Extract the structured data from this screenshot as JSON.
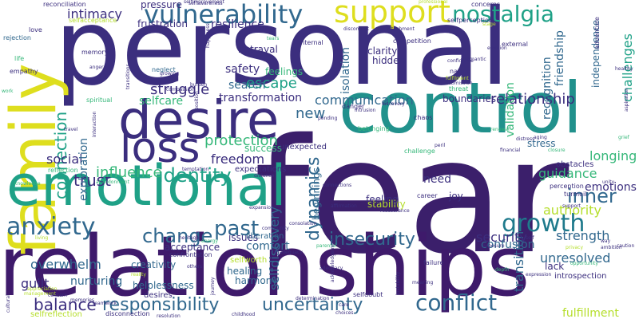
{
  "palette": {
    "dark_purple": "#440154",
    "indigo": "#3b2e7e",
    "blue": "#31688e",
    "teal": "#21918c",
    "green": "#35b779",
    "light_green": "#90d743",
    "yellow": "#fde725"
  },
  "words": [
    {
      "text": "fear",
      "color": "#3b1f6b"
    },
    {
      "text": "personal",
      "color": "#3b2e7e"
    },
    {
      "text": "relationships",
      "color": "#3e1a6b"
    },
    {
      "text": "control",
      "color": "#21918c"
    },
    {
      "text": "family",
      "color": "#dede1e"
    },
    {
      "text": "emotional",
      "color": "#1fa187"
    },
    {
      "text": "desire",
      "color": "#3b2e7e"
    },
    {
      "text": "loss",
      "color": "#3b2e7e"
    },
    {
      "text": "vulnerability",
      "color": "#31688e"
    },
    {
      "text": "support",
      "color": "#dede1e"
    },
    {
      "text": "nostalgia",
      "color": "#1fa187"
    },
    {
      "text": "anxiety",
      "color": "#31688e"
    },
    {
      "text": "responsibility",
      "color": "#31688e"
    },
    {
      "text": "uncertainty",
      "color": "#31688e"
    },
    {
      "text": "conflict",
      "color": "#31688e"
    },
    {
      "text": "connection",
      "color": "#1fa187"
    },
    {
      "text": "identity",
      "color": "#1fa187"
    },
    {
      "text": "growth",
      "color": "#1f7a8c"
    },
    {
      "text": "insecurity",
      "color": "#31688e"
    },
    {
      "text": "change",
      "color": "#31688e"
    },
    {
      "text": "past",
      "color": "#31688e"
    },
    {
      "text": "trust",
      "color": "#3b2e7e"
    },
    {
      "text": "inner",
      "color": "#31688e"
    },
    {
      "text": "balance",
      "color": "#3b2e7e"
    },
    {
      "text": "intimacy",
      "color": "#3b2e7e"
    },
    {
      "text": "struggle",
      "color": "#3b2e7e"
    },
    {
      "text": "dynamics",
      "color": "#31688e"
    },
    {
      "text": "relationship",
      "color": "#3b2e7e"
    },
    {
      "text": "communication",
      "color": "#31688e"
    },
    {
      "text": "selfdiscovery",
      "color": "#31688e"
    },
    {
      "text": "transition",
      "color": "#31688e"
    },
    {
      "text": "protection",
      "color": "#35b779"
    },
    {
      "text": "guidance",
      "color": "#35b779"
    },
    {
      "text": "longing",
      "color": "#35b779"
    },
    {
      "text": "authority",
      "color": "#b5de2b"
    },
    {
      "text": "overwhelm",
      "color": "#31688e"
    },
    {
      "text": "emotions",
      "color": "#3b2e7e"
    },
    {
      "text": "new",
      "color": "#31688e"
    },
    {
      "text": "influence",
      "color": "#35b779"
    },
    {
      "text": "escape",
      "color": "#1fa187"
    },
    {
      "text": "social",
      "color": "#3b2e7e"
    },
    {
      "text": "freedom",
      "color": "#3b2e7e"
    },
    {
      "text": "strength",
      "color": "#31688e"
    },
    {
      "text": "security",
      "color": "#3b2e7e"
    },
    {
      "text": "unresolved",
      "color": "#31688e"
    },
    {
      "text": "challenges",
      "color": "#1fa187"
    },
    {
      "text": "recognition",
      "color": "#31688e"
    },
    {
      "text": "friendship",
      "color": "#31688e"
    },
    {
      "text": "validation",
      "color": "#35b779"
    },
    {
      "text": "transformation",
      "color": "#3b2e7e"
    },
    {
      "text": "frustration",
      "color": "#3b2e7e"
    },
    {
      "text": "resilience",
      "color": "#3b2e7e"
    },
    {
      "text": "guilt",
      "color": "#3b2e7e"
    },
    {
      "text": "nurturing",
      "color": "#31688e"
    },
    {
      "text": "comfort",
      "color": "#31688e"
    },
    {
      "text": "safety",
      "color": "#3b2e7e"
    },
    {
      "text": "feelings",
      "color": "#35b779"
    },
    {
      "text": "selfcare",
      "color": "#35b779"
    },
    {
      "text": "search",
      "color": "#31688e"
    },
    {
      "text": "exploration",
      "color": "#31688e"
    },
    {
      "text": "boundaries",
      "color": "#3b2e7e"
    },
    {
      "text": "isolation",
      "color": "#31688e"
    },
    {
      "text": "betrayal",
      "color": "#3b2e7e"
    },
    {
      "text": "success",
      "color": "#35b779"
    },
    {
      "text": "stability",
      "color": "#b5de2b"
    },
    {
      "text": "need",
      "color": "#3b2e7e"
    },
    {
      "text": "confusion",
      "color": "#31688e"
    },
    {
      "text": "independence",
      "color": "#31688e"
    },
    {
      "text": "pressure",
      "color": "#3b2e7e"
    },
    {
      "text": "acceptance",
      "color": "#3b2e7e"
    },
    {
      "text": "issues",
      "color": "#3b2e7e"
    },
    {
      "text": "healing",
      "color": "#31688e"
    },
    {
      "text": "harmony",
      "color": "#31688e"
    },
    {
      "text": "creativity",
      "color": "#31688e"
    },
    {
      "text": "helplessness",
      "color": "#31688e"
    },
    {
      "text": "selfworth",
      "color": "#b5de2b"
    },
    {
      "text": "liberation",
      "color": "#31688e"
    },
    {
      "text": "stress",
      "color": "#31688e"
    },
    {
      "text": "beginnings",
      "color": "#31688e"
    },
    {
      "text": "hidden",
      "color": "#3b2e7e"
    },
    {
      "text": "clarity",
      "color": "#3b2e7e"
    },
    {
      "text": "unexpected",
      "color": "#3b2e7e"
    },
    {
      "text": "expectations",
      "color": "#3b2e7e"
    },
    {
      "text": "feeling",
      "color": "#3b2e7e"
    },
    {
      "text": "lack",
      "color": "#3b2e7e"
    },
    {
      "text": "joy",
      "color": "#3b2e7e"
    },
    {
      "text": "obstacles",
      "color": "#3b2e7e"
    },
    {
      "text": "introspection",
      "color": "#3b2e7e"
    },
    {
      "text": "fulfillment",
      "color": "#b5de2b"
    },
    {
      "text": "selfreflection",
      "color": "#b5de2b"
    },
    {
      "text": "desires",
      "color": "#3b2e7e"
    },
    {
      "text": "disconnection",
      "color": "#3b2e7e"
    },
    {
      "text": "memory",
      "color": "#3b2e7e"
    },
    {
      "text": "neglect",
      "color": "#31688e"
    },
    {
      "text": "empathy",
      "color": "#3b2e7e"
    },
    {
      "text": "rejection",
      "color": "#31688e"
    },
    {
      "text": "love",
      "color": "#3b2e7e"
    },
    {
      "text": "life",
      "color": "#35b779"
    },
    {
      "text": "reconciliation",
      "color": "#3b2e7e"
    },
    {
      "text": "selfacceptance",
      "color": "#b5de2b"
    },
    {
      "text": "competition",
      "color": "#3b2e7e"
    },
    {
      "text": "selfperception",
      "color": "#3b2e7e"
    },
    {
      "text": "concerns",
      "color": "#3b2e7e"
    },
    {
      "text": "internal",
      "color": "#3b2e7e"
    },
    {
      "text": "external",
      "color": "#3b2e7e"
    },
    {
      "text": "nature",
      "color": "#3b2e7e"
    },
    {
      "text": "challenge",
      "color": "#35b779"
    },
    {
      "text": "spiritual",
      "color": "#35b779"
    },
    {
      "text": "reflection",
      "color": "#35b779"
    },
    {
      "text": "chaos",
      "color": "#3b2e7e"
    },
    {
      "text": "confrontation",
      "color": "#3b2e7e"
    },
    {
      "text": "career",
      "color": "#3b2e7e"
    },
    {
      "text": "adventure",
      "color": "#3b2e7e"
    },
    {
      "text": "danger",
      "color": "#3b2e7e"
    },
    {
      "text": "threat",
      "color": "#35b779"
    },
    {
      "text": "perception",
      "color": "#3b2e7e"
    },
    {
      "text": "turmoil",
      "color": "#3b2e7e"
    },
    {
      "text": "belonging",
      "color": "#35b779"
    },
    {
      "text": "failure",
      "color": "#3b2e7e"
    },
    {
      "text": "selfdoubt",
      "color": "#3b2e7e"
    },
    {
      "text": "determination",
      "color": "#3b2e7e"
    },
    {
      "text": "choices",
      "color": "#3b2e7e"
    },
    {
      "text": "childhood",
      "color": "#3b2e7e"
    },
    {
      "text": "self",
      "color": "#3b2e7e"
    },
    {
      "text": "knowledge",
      "color": "#35b779"
    },
    {
      "text": "abandonment",
      "color": "#35b779"
    },
    {
      "text": "temptation",
      "color": "#3b2e7e"
    },
    {
      "text": "distance",
      "color": "#3b2e7e"
    },
    {
      "text": "aging",
      "color": "#3b2e7e"
    },
    {
      "text": "closure",
      "color": "#35b779"
    },
    {
      "text": "renewal",
      "color": "#35b779"
    },
    {
      "text": "financial",
      "color": "#3b2e7e"
    },
    {
      "text": "distress",
      "color": "#3b2e7e"
    },
    {
      "text": "tears",
      "color": "#35b779"
    },
    {
      "text": "anger",
      "color": "#3b2e7e"
    },
    {
      "text": "burden",
      "color": "#3b2e7e"
    },
    {
      "text": "travel",
      "color": "#3b2e7e"
    },
    {
      "text": "memories",
      "color": "#3b2e7e"
    },
    {
      "text": "reassurance",
      "color": "#3b2e7e"
    },
    {
      "text": "grief",
      "color": "#35b779"
    },
    {
      "text": "aspiration",
      "color": "#3b2e7e"
    },
    {
      "text": "reality",
      "color": "#b5de2b"
    },
    {
      "text": "appreciation",
      "color": "#b5de2b"
    },
    {
      "text": "cultural",
      "color": "#3b2e7e"
    },
    {
      "text": "instability",
      "color": "#3b2e7e"
    },
    {
      "text": "journey",
      "color": "#3b2e7e"
    },
    {
      "text": "romantic",
      "color": "#3b2e7e"
    },
    {
      "text": "selfawareness",
      "color": "#3b2e7e"
    },
    {
      "text": "transitions",
      "color": "#3b2e7e"
    },
    {
      "text": "interaction",
      "color": "#3b2e7e"
    },
    {
      "text": "management",
      "color": "#b5de2b"
    },
    {
      "text": "concern",
      "color": "#3b2e7e"
    },
    {
      "text": "teamwork",
      "color": "#3b2e7e"
    },
    {
      "text": "opportunity",
      "color": "#35b779"
    },
    {
      "text": "ambition",
      "color": "#3b2e7e"
    },
    {
      "text": "connections",
      "color": "#3b2e7e"
    },
    {
      "text": "community",
      "color": "#3b2e7e"
    },
    {
      "text": "exposure",
      "color": "#3b2e7e"
    },
    {
      "text": "parental",
      "color": "#35b779"
    },
    {
      "text": "privacy",
      "color": "#b5de2b"
    },
    {
      "text": "expansion",
      "color": "#3b2e7e"
    },
    {
      "text": "inadequacy",
      "color": "#3b2e7e"
    },
    {
      "text": "others",
      "color": "#3b2e7e"
    },
    {
      "text": "energy",
      "color": "#35b779"
    },
    {
      "text": "happiness",
      "color": "#3b2e7e"
    },
    {
      "text": "professional",
      "color": "#b5de2b"
    },
    {
      "text": "discomfort",
      "color": "#3b2e7e"
    },
    {
      "text": "selfimprovement",
      "color": "#3b2e7e"
    },
    {
      "text": "acknowledgement",
      "color": "#3b2e7e"
    },
    {
      "text": "affirmation",
      "color": "#3b2e7e"
    },
    {
      "text": "resolution",
      "color": "#3b2e7e"
    },
    {
      "text": "work",
      "color": "#35b779"
    },
    {
      "text": "expression",
      "color": "#3b2e7e"
    },
    {
      "text": "depth",
      "color": "#35b779"
    },
    {
      "text": "compassion",
      "color": "#3b2e7e"
    },
    {
      "text": "position",
      "color": "#3b2e7e"
    },
    {
      "text": "unity",
      "color": "#3b2e7e"
    },
    {
      "text": "caution",
      "color": "#3b2e7e"
    },
    {
      "text": "care",
      "color": "#3b2e7e"
    },
    {
      "text": "meaning",
      "color": "#3b2e7e"
    },
    {
      "text": "peril",
      "color": "#3b2e7e"
    },
    {
      "text": "intrusion",
      "color": "#3b2e7e"
    },
    {
      "text": "emotion",
      "color": "#3b2e7e"
    },
    {
      "text": "fulfilment",
      "color": "#b5de2b"
    },
    {
      "text": "confidence",
      "color": "#3b2e7e"
    },
    {
      "text": "consolation",
      "color": "#3b2e7e"
    },
    {
      "text": "pending",
      "color": "#3b2e7e"
    },
    {
      "text": "way",
      "color": "#3b2e7e"
    },
    {
      "text": "adequacy",
      "color": "#3b2e7e"
    },
    {
      "text": "living",
      "color": "#b5de2b"
    },
    {
      "text": "discovery",
      "color": "#3b2e7e"
    },
    {
      "text": "heritage",
      "color": "#3b2e7e"
    },
    {
      "text": "submission",
      "color": "#3b2e7e"
    },
    {
      "text": "growing",
      "color": "#3b2e7e"
    },
    {
      "text": "attachment",
      "color": "#3b2e7e"
    },
    {
      "text": "stage",
      "color": "#b5de2b"
    },
    {
      "text": "healthy",
      "color": "#3b2e7e"
    },
    {
      "text": "support",
      "color": "#3b2e7e"
    }
  ]
}
